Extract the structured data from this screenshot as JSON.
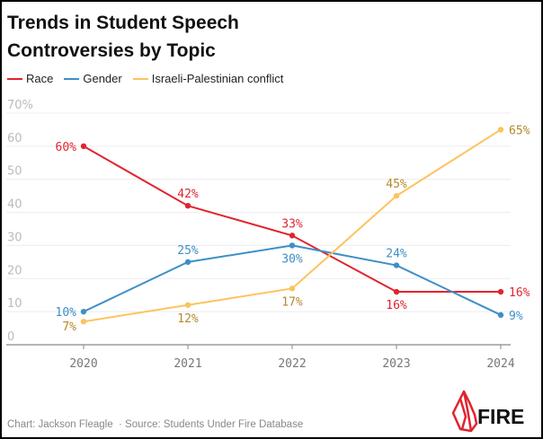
{
  "title_line1": "Trends in Student Speech",
  "title_line2": "Controversies by Topic",
  "footer": {
    "credit": "Chart: Jackson Fleagle",
    "source": "Source: Students Under Fire Database"
  },
  "logo_text": "FIRE",
  "chart_data": {
    "type": "line",
    "title": "Trends in Student Speech Controversies by Topic",
    "x": [
      "2020",
      "2021",
      "2022",
      "2023",
      "2024"
    ],
    "ylim": [
      0,
      70
    ],
    "yticks": [
      0,
      10,
      20,
      30,
      40,
      50,
      60,
      70
    ],
    "ytick_labels": [
      "0",
      "10",
      "20",
      "30",
      "40",
      "50",
      "60",
      "70%"
    ],
    "grid": true,
    "legend_position": "top-left",
    "series": [
      {
        "name": "Race",
        "color": "#e0242f",
        "label_color": "#e0242f",
        "values": [
          60,
          42,
          33,
          16,
          16
        ],
        "labels": [
          "60%",
          "42%",
          "33%",
          "16%",
          "16%"
        ],
        "label_pos": [
          "left",
          "above",
          "above",
          "below",
          "right"
        ]
      },
      {
        "name": "Gender",
        "color": "#3d8fc6",
        "label_color": "#3d8fc6",
        "values": [
          10,
          25,
          30,
          24,
          9
        ],
        "labels": [
          "10%",
          "25%",
          "30%",
          "24%",
          "9%"
        ],
        "label_pos": [
          "left",
          "above",
          "below",
          "above",
          "right"
        ]
      },
      {
        "name": "Israeli-Palestinian conflict",
        "color": "#fdc35e",
        "label_color": "#b5892a",
        "values": [
          7,
          12,
          17,
          45,
          65
        ],
        "labels": [
          "7%",
          "12%",
          "17%",
          "45%",
          "65%"
        ],
        "label_pos": [
          "leftbelow",
          "below",
          "below",
          "above",
          "right"
        ]
      }
    ]
  }
}
